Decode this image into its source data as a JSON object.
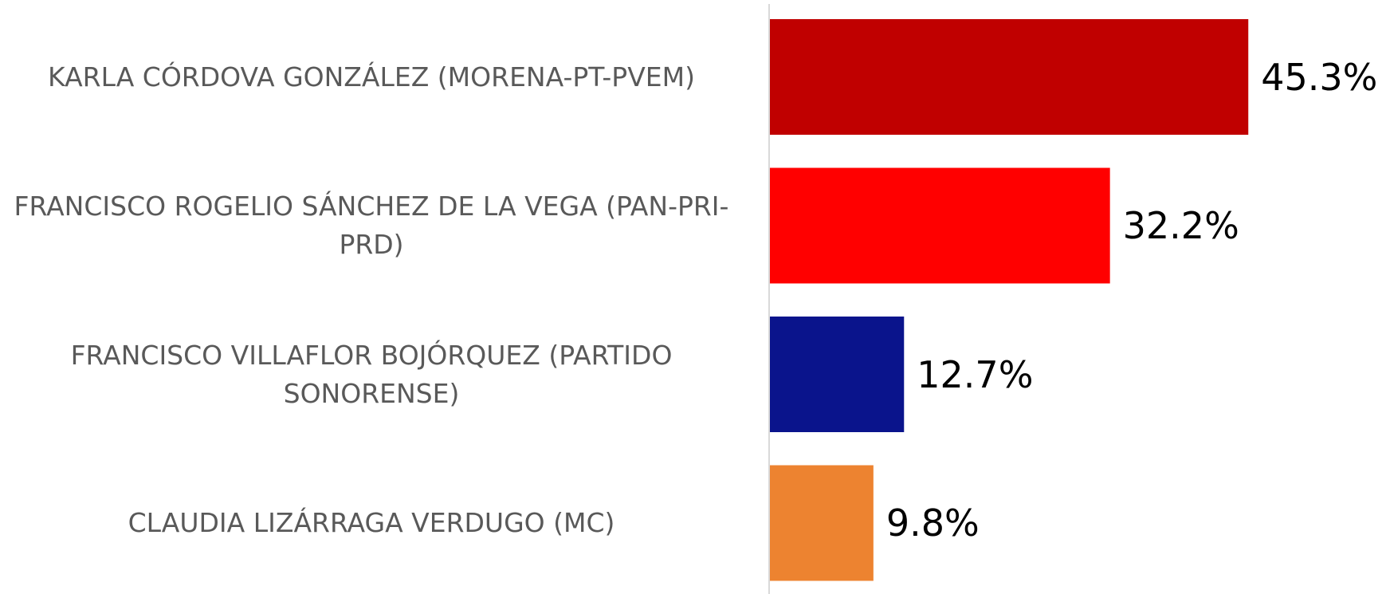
{
  "chart_data": {
    "type": "bar",
    "orientation": "horizontal",
    "categories": [
      "KARLA CÓRDOVA GONZÁLEZ (MORENA-PT-PVEM)",
      "FRANCISCO ROGELIO SÁNCHEZ DE LA VEGA (PAN-PRI-PRD)",
      "FRANCISCO VILLAFLOR BOJÓRQUEZ (PARTIDO SONORENSE)",
      "CLAUDIA LIZÁRRAGA VERDUGO (MC)"
    ],
    "values": [
      45.3,
      32.2,
      12.7,
      9.8
    ],
    "value_labels": [
      "45.3%",
      "32.2%",
      "12.7%",
      "9.8%"
    ],
    "colors": [
      "#c00000",
      "#ff0000",
      "#0a148c",
      "#ed8330"
    ]
  }
}
